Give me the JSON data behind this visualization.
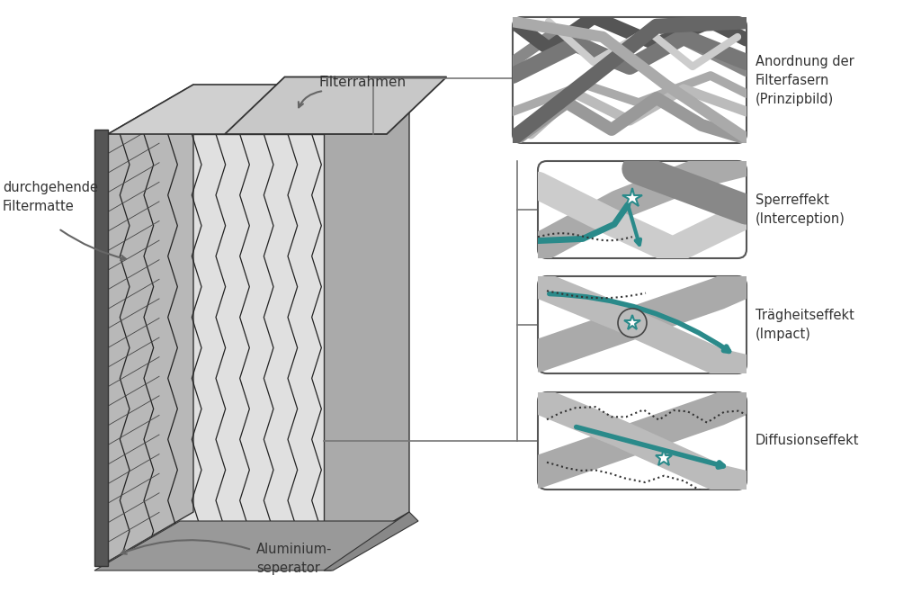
{
  "title": "",
  "bg_color": "#ffffff",
  "label_filterrahmen": "Filterrahmen",
  "label_filtermatte": "durchgehende\nFiltermatte",
  "label_aluminium": "Aluminium-\nseperator",
  "label_anordnung": "Anordnung der\nFilterfasern\n(Prinzipbild)",
  "label_sperr": "Sperreffekt\n(Interception)",
  "label_traegheit": "Trägheitseffekt\n(Impact)",
  "label_diffusion": "Diffusionseffekt",
  "text_color": "#333333",
  "gray_light": "#cccccc",
  "gray_mid": "#999999",
  "gray_dark": "#555555",
  "teal_color": "#2a8a8a",
  "box_outline": "#555555"
}
